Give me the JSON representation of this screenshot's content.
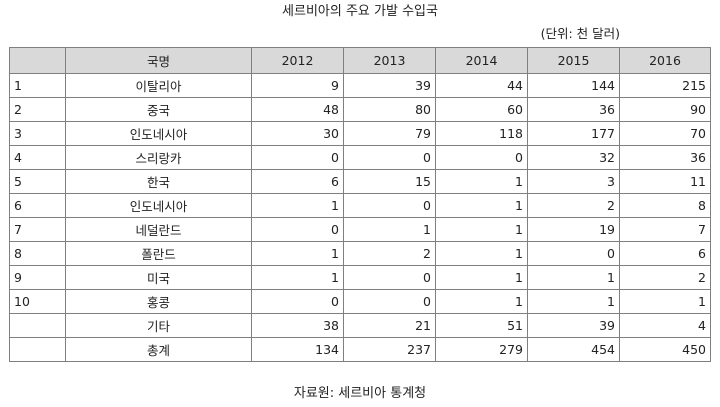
{
  "title": "세르비아의 주요 가발 수입국",
  "unit": "(단위: 천 달러)",
  "source": "자료원: 세르비아 통계청",
  "table": {
    "headers": [
      "",
      "국명",
      "2012",
      "2013",
      "2014",
      "2015",
      "2016"
    ],
    "rows": [
      {
        "no": "1",
        "country": "이탈리아",
        "values": [
          "9",
          "39",
          "44",
          "144",
          "215"
        ]
      },
      {
        "no": "2",
        "country": "중국",
        "values": [
          "48",
          "80",
          "60",
          "36",
          "90"
        ]
      },
      {
        "no": "3",
        "country": "인도네시아",
        "values": [
          "30",
          "79",
          "118",
          "177",
          "70"
        ]
      },
      {
        "no": "4",
        "country": "스리랑카",
        "values": [
          "0",
          "0",
          "0",
          "32",
          "36"
        ]
      },
      {
        "no": "5",
        "country": "한국",
        "values": [
          "6",
          "15",
          "1",
          "3",
          "11"
        ]
      },
      {
        "no": "6",
        "country": "인도네시아",
        "values": [
          "1",
          "0",
          "1",
          "2",
          "8"
        ]
      },
      {
        "no": "7",
        "country": "네덜란드",
        "values": [
          "0",
          "1",
          "1",
          "19",
          "7"
        ]
      },
      {
        "no": "8",
        "country": "폴란드",
        "values": [
          "1",
          "2",
          "1",
          "0",
          "6"
        ]
      },
      {
        "no": "9",
        "country": "미국",
        "values": [
          "1",
          "0",
          "1",
          "1",
          "2"
        ]
      },
      {
        "no": "10",
        "country": "홍콩",
        "values": [
          "0",
          "0",
          "1",
          "1",
          "1"
        ]
      },
      {
        "no": "",
        "country": "기타",
        "values": [
          "38",
          "21",
          "51",
          "39",
          "4"
        ]
      },
      {
        "no": "",
        "country": "총계",
        "values": [
          "134",
          "237",
          "279",
          "454",
          "450"
        ]
      }
    ]
  }
}
